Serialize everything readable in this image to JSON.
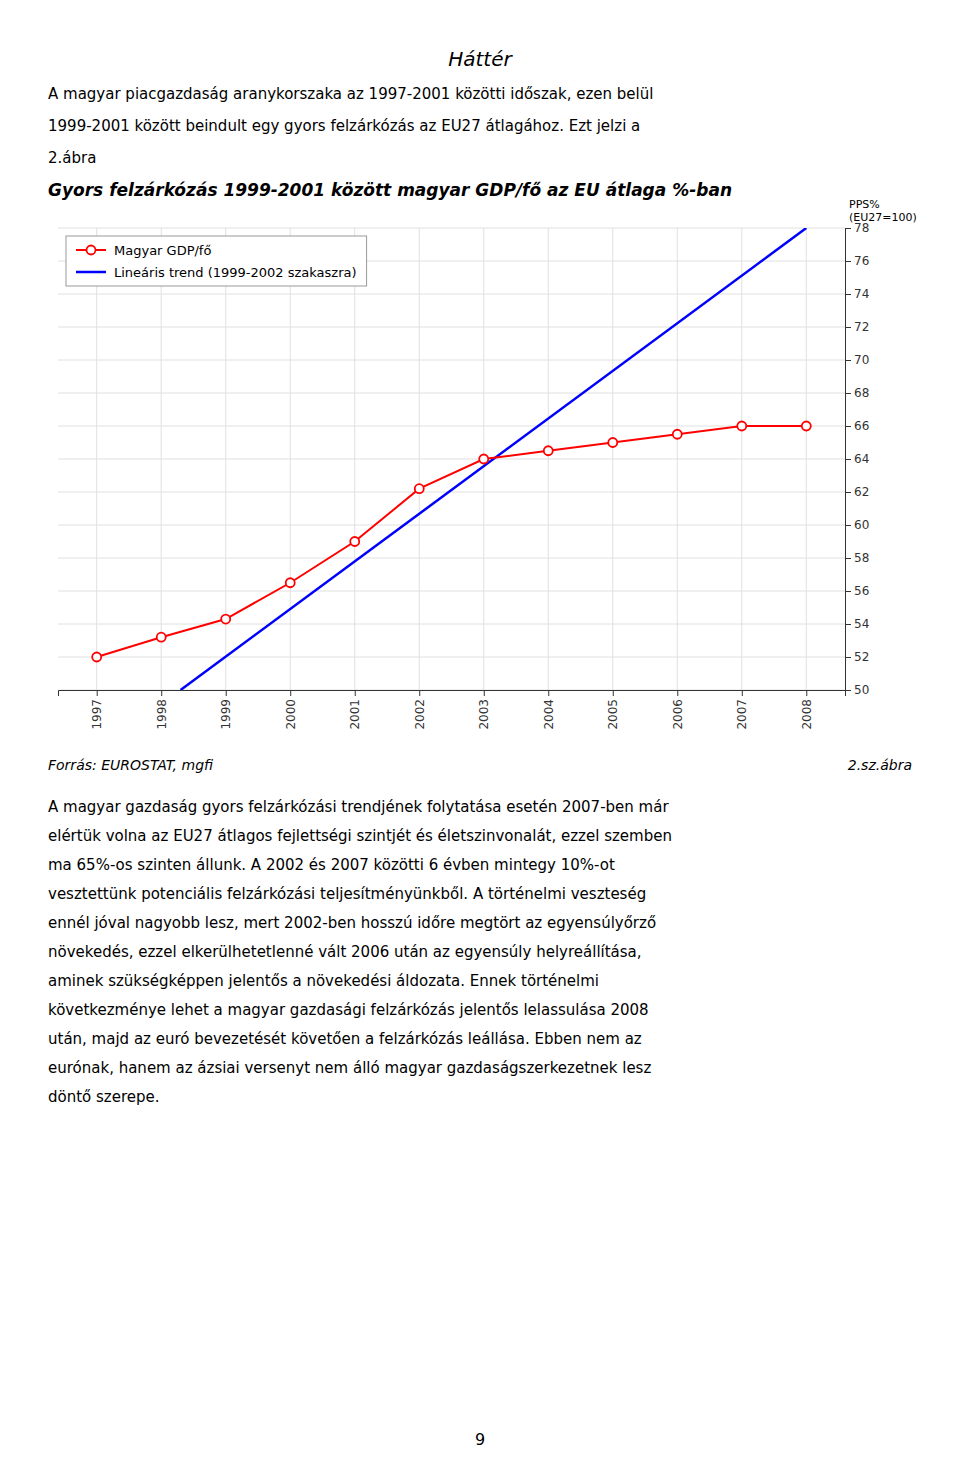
{
  "header": "Háttér",
  "intro": [
    "A magyar piacgazdaság aranykorszaka az 1997-2001 közötti időszak, ezen belül",
    "1999-2001 között beindult egy gyors felzárkózás az EU27 átlagához. Ezt jelzi a",
    "2.ábra"
  ],
  "chart_data": {
    "type": "line",
    "title": "Gyors felzárkózás 1999-2001 között magyar GDP/fő az EU átlaga %-ban",
    "ylabel": "PPS%\n(EU27=100)",
    "x": [
      1997,
      1998,
      1999,
      2000,
      2001,
      2002,
      2003,
      2004,
      2005,
      2006,
      2007,
      2008
    ],
    "xlim": [
      1996.4,
      2008.6
    ],
    "xticks": [
      1997,
      1998,
      1999,
      2000,
      2001,
      2002,
      2003,
      2004,
      2005,
      2006,
      2007,
      2008
    ],
    "ylim": [
      50,
      78
    ],
    "yticks": [
      50,
      52,
      54,
      56,
      58,
      60,
      62,
      64,
      66,
      68,
      70,
      72,
      74,
      76,
      78
    ],
    "grid": true,
    "legend": "upper left",
    "series": [
      {
        "name": "Magyar GDP/fő",
        "color": "#FF0000",
        "marker": "circle",
        "values": [
          52.0,
          53.2,
          54.3,
          56.5,
          59.0,
          62.2,
          64.0,
          64.5,
          65.0,
          65.5,
          66.0,
          66.0
        ]
      },
      {
        "name": "Lineáris trend (1999-2002 szakaszra)",
        "color": "#0000FF",
        "x": [
          1998.3,
          2008
        ],
        "values": [
          50.0,
          78.0
        ]
      }
    ]
  },
  "footer_left": "Forrás: EUROSTAT, mgfi",
  "footer_right": "2.sz.ábra",
  "body": [
    "A magyar gazdaság gyors felzárkózási trendjének folytatása esetén 2007-ben már",
    "elértük volna az EU27 átlagos fejlettségi szintjét és életszinvonalát, ezzel szemben",
    "ma 65%-os szinten állunk. A 2002 és 2007 közötti 6 évben mintegy 10%-ot",
    "vesztettünk potenciális felzárkózási teljesítményünkből. A történelmi veszteség",
    "ennél jóval nagyobb lesz, mert 2002-ben hosszú időre megtört az egyensúlyőrző",
    "növekedés, ezzel elkerülhetetlenné vált 2006 után az egyensúly helyreállítása,",
    "aminek szükségképpen jelentős a növekedési áldozata. Ennek történelmi",
    "következménye lehet a magyar gazdasági felzárkózás jelentős lelassulása 2008",
    "után, majd az euró bevezetését követően a felzárkózás leállása. Ebben nem az",
    "eurónak, hanem az ázsiai versenyt nem álló magyar gazdaságszerkezetnek lesz",
    "döntő szerepe."
  ],
  "page_number": "9"
}
